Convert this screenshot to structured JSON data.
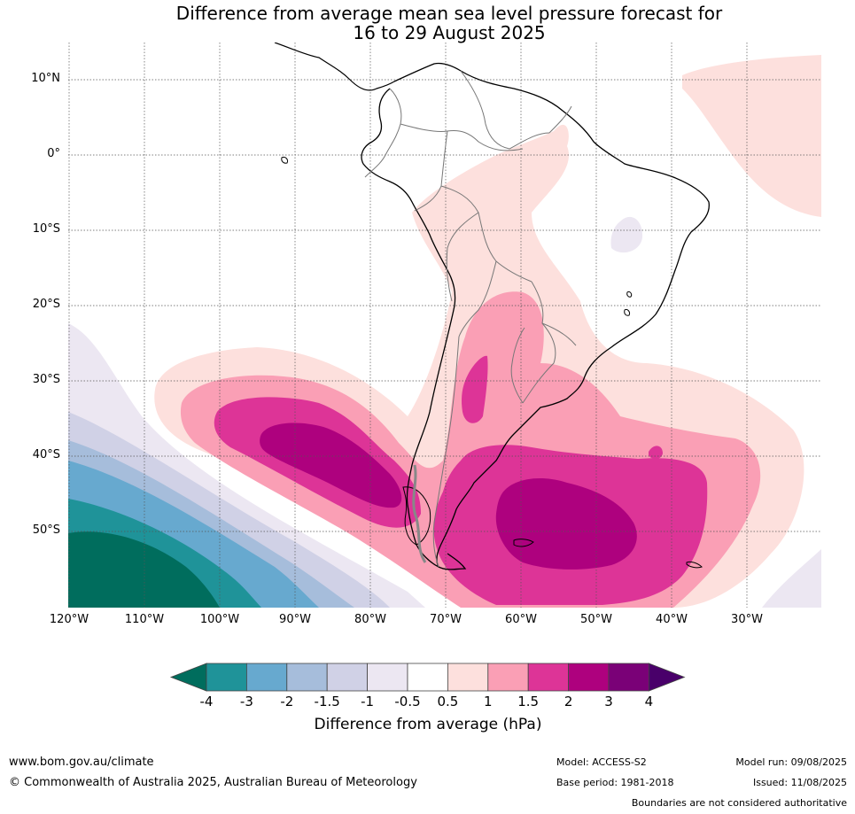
{
  "title_line1": "Difference from average mean sea level pressure forecast for",
  "title_line2": "16 to 29 August 2025",
  "lat_labels": [
    "10°N",
    "0°",
    "10°S",
    "20°S",
    "30°S",
    "40°S",
    "50°S"
  ],
  "lon_labels": [
    "120°W",
    "110°W",
    "100°W",
    "90°W",
    "80°W",
    "70°W",
    "60°W",
    "50°W",
    "40°W",
    "30°W"
  ],
  "colorbar": {
    "label": "Difference from average (hPa)",
    "ticks": [
      "-4",
      "-3",
      "-2",
      "-1.5",
      "-1",
      "-0.5",
      "0.5",
      "1",
      "1.5",
      "2",
      "3",
      "4"
    ],
    "colors": [
      "#006d5d",
      "#1f9399",
      "#67a9cf",
      "#a6bddb",
      "#d0d1e6",
      "#ece7f2",
      "#ffffff",
      "#fde0dd",
      "#fa9fb5",
      "#dd3497",
      "#ae017e",
      "#7a0177",
      "#49006a"
    ]
  },
  "footer": {
    "website": "www.bom.gov.au/climate",
    "copyright": "© Commonwealth of Australia 2025, Australian Bureau of Meteorology",
    "model": "Model: ACCESS-S2",
    "base_period": "Base period: 1981-2018",
    "model_run": "Model run: 09/08/2025",
    "issued": "Issued: 11/08/2025",
    "disclaimer": "Boundaries are not considered authoritative"
  }
}
